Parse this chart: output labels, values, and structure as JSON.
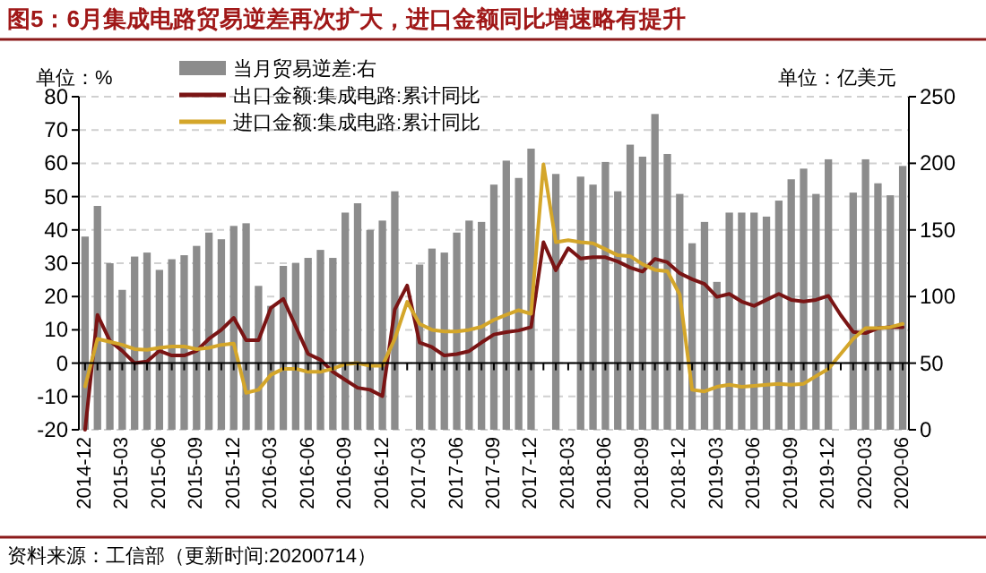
{
  "chart_data": {
    "type": "bar",
    "title": "图5：6月集成电路贸易逆差再次扩大，进口金额同比增速略有提升",
    "categories": [
      "2014-12",
      null,
      null,
      "2015-03",
      null,
      null,
      "2015-06",
      null,
      null,
      "2015-09",
      null,
      null,
      "2015-12",
      null,
      null,
      "2016-03",
      null,
      null,
      "2016-06",
      null,
      null,
      "2016-09",
      null,
      null,
      "2016-12",
      null,
      null,
      "2017-03",
      null,
      null,
      "2017-06",
      null,
      null,
      "2017-09",
      null,
      null,
      "2017-12",
      null,
      null,
      "2018-03",
      null,
      null,
      "2018-06",
      null,
      null,
      "2018-09",
      null,
      null,
      "2018-12",
      null,
      null,
      "2019-03",
      null,
      null,
      "2019-06",
      null,
      null,
      "2019-09",
      null,
      null,
      "2019-12",
      null,
      null,
      "2020-03",
      null,
      null,
      "2020-06"
    ],
    "series": [
      {
        "name": "当月贸易逆差:右",
        "axis": "y2",
        "color": "#8c8c8c",
        "values": [
          145,
          168,
          125,
          105,
          130,
          133,
          120,
          128,
          131,
          138,
          148,
          143,
          153,
          155,
          108,
          93,
          123,
          125,
          129,
          135,
          129,
          163,
          170,
          150,
          157,
          179,
          null,
          124,
          136,
          133,
          148,
          157,
          156,
          184,
          202,
          189,
          211,
          null,
          192,
          null,
          190,
          184,
          201,
          179,
          214,
          205,
          237,
          207,
          177,
          140,
          156,
          111,
          163,
          163,
          163,
          160,
          172,
          188,
          196,
          177,
          203,
          null,
          178,
          203,
          185,
          176,
          198
        ]
      },
      {
        "name": "出口金额:集成电路:累计同比",
        "type": "line",
        "color": "#7a1414",
        "values": [
          -20,
          14.5,
          6.7,
          3.7,
          0,
          0.5,
          3.7,
          2.3,
          2.3,
          3.7,
          7.3,
          10,
          13.6,
          6.9,
          6.9,
          16.6,
          19.3,
          11,
          2.8,
          1,
          -2.6,
          -5,
          -7.4,
          -8,
          -9.9,
          16.1,
          23.3,
          6.2,
          4.8,
          2.3,
          2.7,
          3.6,
          6.2,
          8.6,
          9.3,
          9.8,
          10.8,
          36.3,
          27.9,
          34.5,
          31.4,
          31.8,
          31.8,
          30.5,
          28.7,
          27.5,
          31.3,
          30.3,
          27,
          25.2,
          23.8,
          19.9,
          20.8,
          18.5,
          17.2,
          19,
          20.8,
          19,
          18.5,
          19,
          20.2,
          14.4,
          9.4,
          9,
          10.5,
          10.8,
          10.8
        ]
      },
      {
        "name": "进口金额:集成电路:累计同比",
        "type": "line",
        "color": "#d4a62a",
        "values": [
          -7,
          7.3,
          6.4,
          5.5,
          4.2,
          4,
          4.6,
          5,
          5,
          4.2,
          4.6,
          5.5,
          5.9,
          -8.9,
          -8,
          -3.5,
          -1.7,
          -1.7,
          -2.6,
          -2.6,
          -1.7,
          -0.3,
          0,
          -0.8,
          -0.8,
          7.3,
          18.4,
          11.8,
          10,
          9.5,
          9.5,
          10,
          10.9,
          13,
          14.5,
          15.9,
          14.8,
          59.7,
          36.3,
          36.9,
          36.3,
          36,
          34.2,
          32.4,
          32.1,
          29.7,
          28,
          27.6,
          20.6,
          -8,
          -8.5,
          -7.1,
          -6.5,
          -7.1,
          -6.8,
          -6.5,
          -6.2,
          -6.5,
          -6.2,
          -3.9,
          -1.7,
          2.8,
          7.3,
          10.5,
          10.5,
          10.8,
          11.8
        ]
      }
    ],
    "ylim": [
      -20,
      80
    ],
    "yticks": [
      -20,
      -10,
      0,
      10,
      20,
      30,
      40,
      50,
      60,
      70,
      80
    ],
    "y2lim": [
      0,
      250
    ],
    "y2ticks": [
      0,
      50,
      100,
      150,
      200,
      250
    ],
    "grid": "y",
    "legend": "top left",
    "annotations": [
      "单位：%",
      "单位：亿美元",
      "资料来源：工信部（更新时间:20200714）"
    ]
  }
}
